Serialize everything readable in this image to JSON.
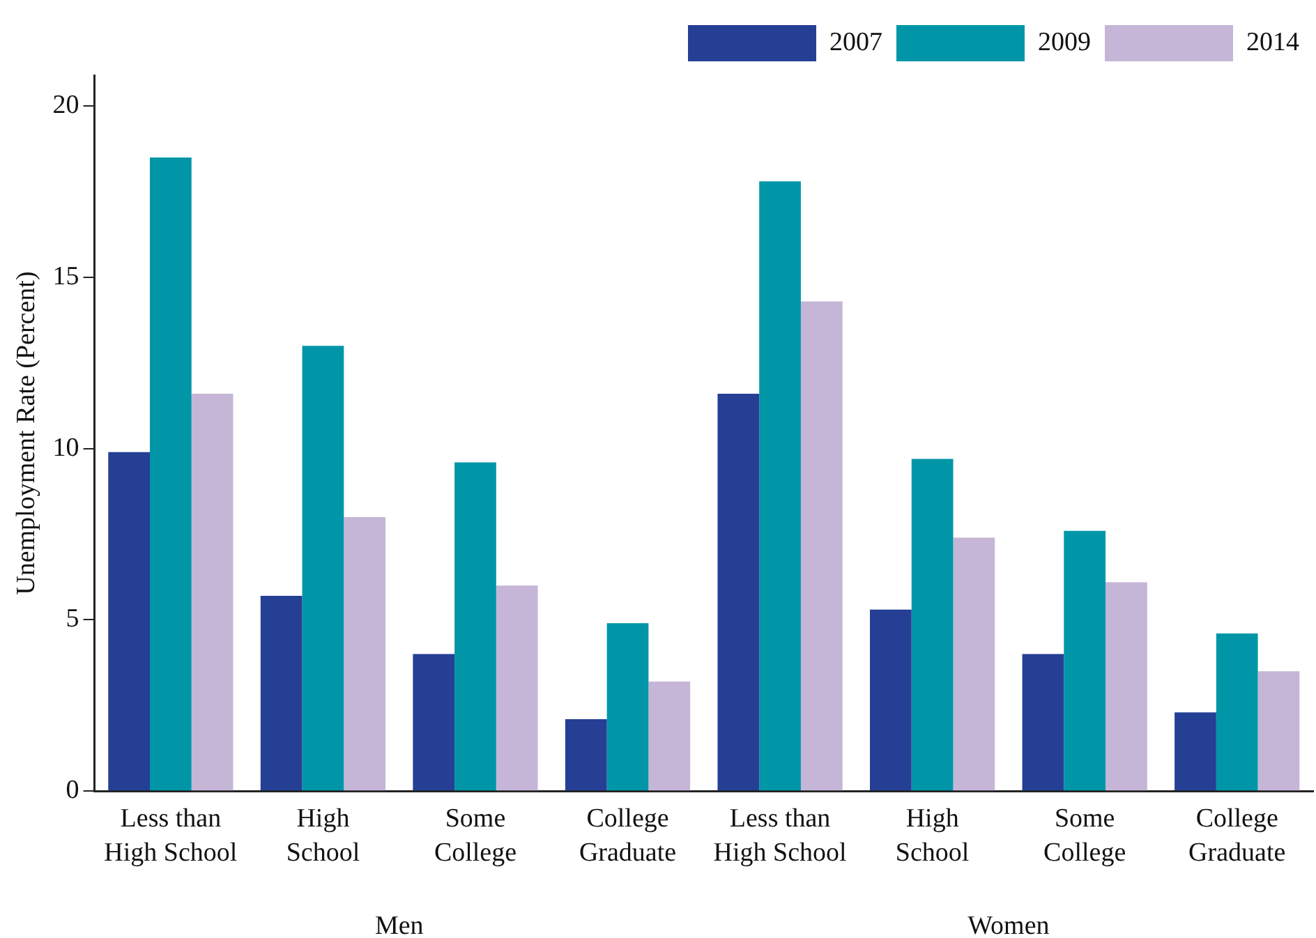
{
  "chart_data": {
    "type": "bar",
    "ylabel": "Unemployment Rate (Percent)",
    "categories": [
      "Less than\nHigh School",
      "High\nSchool",
      "Some\nCollege",
      "College\nGraduate",
      "Less than\nHigh School",
      "High\nSchool",
      "Some\nCollege",
      "College\nGraduate"
    ],
    "series": [
      {
        "name": "2007",
        "color": "#253f94",
        "values": [
          9.9,
          5.7,
          4.0,
          2.1,
          11.6,
          5.3,
          4.0,
          2.3
        ]
      },
      {
        "name": "2009",
        "color": "#0096a8",
        "values": [
          18.5,
          13.0,
          9.6,
          4.9,
          17.8,
          9.7,
          7.6,
          4.6
        ]
      },
      {
        "name": "2014",
        "color": "#c5b6d8",
        "values": [
          11.6,
          8.0,
          6.0,
          3.2,
          14.3,
          7.4,
          6.1,
          3.5
        ]
      }
    ],
    "ylim": [
      0,
      20.9
    ],
    "yticks": [
      0,
      5,
      10,
      15,
      20
    ],
    "grid": false,
    "legend": "top right",
    "annotations": [
      "Men",
      "Women"
    ]
  }
}
